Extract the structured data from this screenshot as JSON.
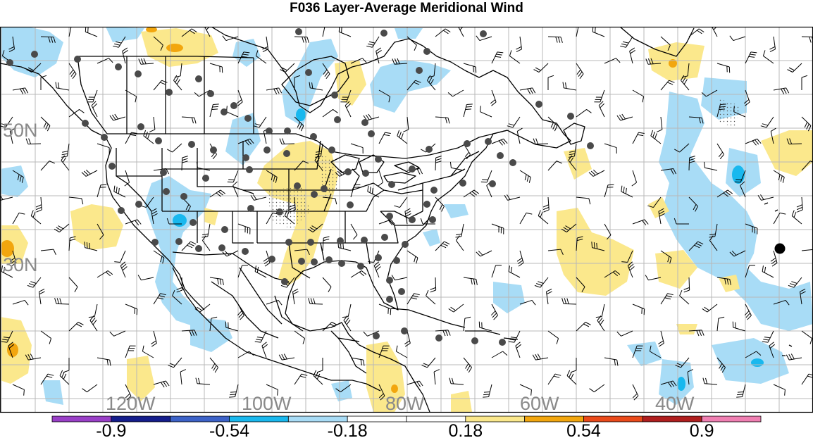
{
  "title": "F036 Layer-Average Meridional Wind",
  "lat_labels": [
    {
      "text": "50N",
      "lat": 50
    },
    {
      "text": "30N",
      "lat": 30
    }
  ],
  "lon_labels": [
    {
      "text": "120W",
      "lon": -120
    },
    {
      "text": "100W",
      "lon": -100
    },
    {
      "text": "80W",
      "lon": -80
    },
    {
      "text": "60W",
      "lon": -60
    },
    {
      "text": "40W",
      "lon": -40
    }
  ],
  "colorbar": {
    "colors": [
      "#9a3fc8",
      "#141d8c",
      "#3c62c8",
      "#19b8ee",
      "#a8dcf6",
      "#ffffff",
      "#ffffff",
      "#fbe88c",
      "#f2a60e",
      "#ea4a1a",
      "#b01e1e",
      "#f07fb2"
    ],
    "labels": [
      "-0.9",
      "-0.54",
      "-0.18",
      "0.18",
      "0.54",
      "0.9"
    ],
    "label_at_boundary": [
      1,
      3,
      5,
      7,
      9,
      11
    ]
  },
  "legend_colors": {
    "light_blue": "#a8dcf6",
    "mid_blue": "#19b8ee",
    "light_yellow": "#fbe88c",
    "orange": "#f2a60e",
    "station": "#4a4a4a"
  }
}
